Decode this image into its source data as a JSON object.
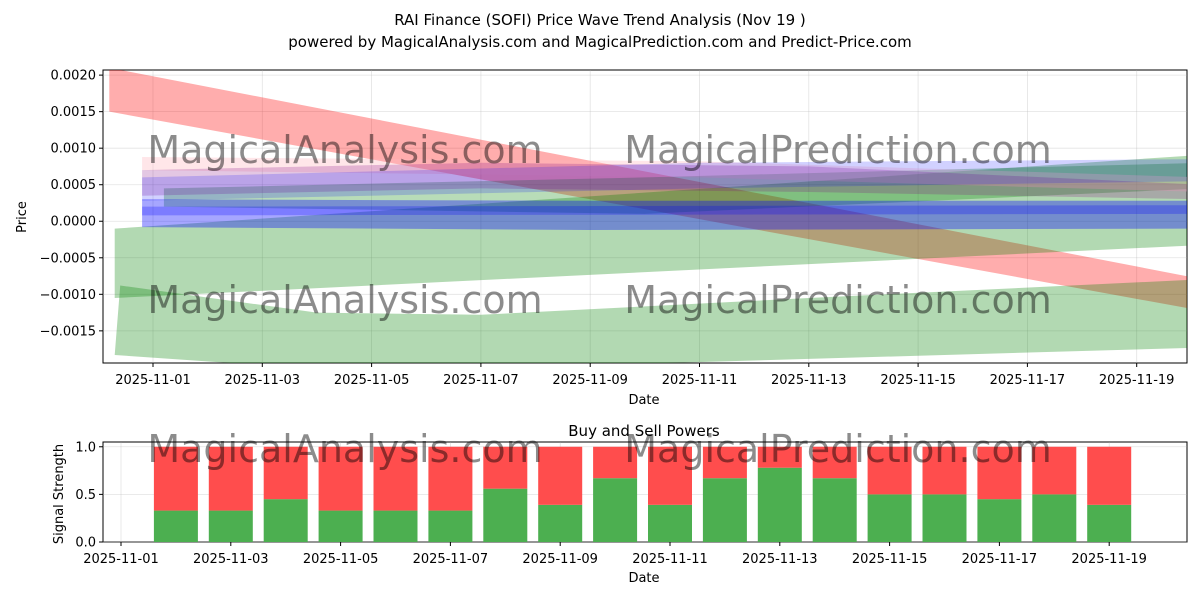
{
  "title_line1": "RAI Finance (SOFI) Price Wave Trend Analysis (Nov 19 )",
  "title_line2": "powered by MagicalAnalysis.com and MagicalPrediction.com and Predict-Price.com",
  "watermarks": [
    "MagicalAnalysis.com",
    "MagicalPrediction.com"
  ],
  "colors": {
    "red": "#ff0000",
    "green": "#008000",
    "blue": "#0000ff",
    "pink": "#ffb6c1",
    "purple": "#800080",
    "buy": "#4caf50",
    "sell": "#ff4d4d"
  },
  "chart_data": [
    {
      "type": "area",
      "title": "",
      "xlabel": "Date",
      "ylabel": "Price",
      "x_ticks": [
        "2025-11-01",
        "2025-11-03",
        "2025-11-05",
        "2025-11-07",
        "2025-11-09",
        "2025-11-11",
        "2025-11-13",
        "2025-11-15",
        "2025-11-17",
        "2025-11-19"
      ],
      "y_ticks": [
        "0.0020",
        "0.0015",
        "0.0010",
        "0.0005",
        "0.0000",
        "−0.0005",
        "−0.0010",
        "−0.0015"
      ],
      "ylim": [
        -0.00194,
        0.00207
      ],
      "grid": true,
      "bands": [
        {
          "name": "red-down",
          "color": "red",
          "opacity": 0.32,
          "upper": [
            [
              -0.8,
              0.0021
            ],
            [
              19.6,
              -0.00085
            ]
          ],
          "lower": [
            [
              -0.8,
              0.0015
            ],
            [
              19.6,
              -0.00128
            ]
          ]
        },
        {
          "name": "green-up-wide",
          "color": "green",
          "opacity": 0.3,
          "upper": [
            [
              -0.7,
              -0.0001
            ],
            [
              19.6,
              0.00093
            ]
          ],
          "lower": [
            [
              -0.7,
              -0.00105
            ],
            [
              19.6,
              -0.00031
            ]
          ]
        },
        {
          "name": "green-lower",
          "color": "green",
          "opacity": 0.3,
          "upper": [
            [
              -0.6,
              -0.00088
            ],
            [
              3.0,
              -0.00125
            ],
            [
              6.0,
              -0.00128
            ],
            [
              12.0,
              -0.00105
            ],
            [
              19.6,
              -0.00078
            ]
          ],
          "lower": [
            [
              -0.7,
              -0.00183
            ],
            [
              2.0,
              -0.00197
            ],
            [
              8.0,
              -0.00197
            ],
            [
              19.6,
              -0.00172
            ]
          ]
        },
        {
          "name": "green-mid",
          "color": "green",
          "opacity": 0.28,
          "upper": [
            [
              0.2,
              0.00045
            ],
            [
              9.0,
              0.0006
            ],
            [
              19.2,
              0.0008
            ]
          ],
          "lower": [
            [
              0.2,
              0.0002
            ],
            [
              9.0,
              0.0001
            ],
            [
              19.2,
              0.00045
            ]
          ]
        },
        {
          "name": "pink-top",
          "color": "pink",
          "opacity": 0.35,
          "upper": [
            [
              -0.2,
              0.00088
            ],
            [
              10.0,
              0.00082
            ],
            [
              19.2,
              0.0006
            ]
          ],
          "lower": [
            [
              -0.2,
              0.0007
            ],
            [
              10.0,
              0.0006
            ],
            [
              19.2,
              0.0004
            ]
          ]
        },
        {
          "name": "purple-top",
          "color": "purple",
          "opacity": 0.22,
          "upper": [
            [
              -0.2,
              0.0007
            ],
            [
              6.0,
              0.0008
            ],
            [
              12.0,
              0.00075
            ],
            [
              19.2,
              0.0005
            ]
          ],
          "lower": [
            [
              -0.2,
              0.00035
            ],
            [
              6.0,
              0.00045
            ],
            [
              12.0,
              0.0004
            ],
            [
              19.2,
              0.0003
            ]
          ]
        },
        {
          "name": "blue-upper",
          "color": "blue",
          "opacity": 0.18,
          "upper": [
            [
              -0.2,
              0.0006
            ],
            [
              10.0,
              0.0008
            ],
            [
              19.2,
              0.00085
            ]
          ],
          "lower": [
            [
              -0.2,
              0.00028
            ],
            [
              10.0,
              0.00045
            ],
            [
              19.2,
              0.00055
            ]
          ]
        },
        {
          "name": "blue-lower",
          "color": "blue",
          "opacity": 0.35,
          "upper": [
            [
              -0.2,
              0.0003
            ],
            [
              8.0,
              0.00028
            ],
            [
              19.2,
              0.00028
            ]
          ],
          "lower": [
            [
              -0.2,
              -8e-05
            ],
            [
              8.0,
              -0.00012
            ],
            [
              19.2,
              -0.0001
            ]
          ]
        },
        {
          "name": "blue-thin",
          "color": "blue",
          "opacity": 0.25,
          "upper": [
            [
              -0.2,
              0.0002
            ],
            [
              19.2,
              0.00022
            ]
          ],
          "lower": [
            [
              -0.2,
              8e-05
            ],
            [
              19.2,
              0.0001
            ]
          ]
        }
      ]
    },
    {
      "type": "bar",
      "title": "Buy and Sell Powers",
      "xlabel": "Date",
      "ylabel": "Signal Strength",
      "x_ticks": [
        "2025-11-01",
        "2025-11-03",
        "2025-11-05",
        "2025-11-07",
        "2025-11-09",
        "2025-11-11",
        "2025-11-13",
        "2025-11-15",
        "2025-11-17",
        "2025-11-19"
      ],
      "y_ticks": [
        "0.0",
        "0.5",
        "1.0"
      ],
      "ylim": [
        0,
        1.05
      ],
      "grid": true,
      "bar_days": [
        1,
        2,
        3,
        4,
        5,
        6,
        7,
        8,
        9,
        10,
        11,
        12,
        13,
        14,
        15,
        16,
        17,
        18
      ],
      "buy": [
        0.33,
        0.33,
        0.45,
        0.33,
        0.33,
        0.33,
        0.56,
        0.39,
        0.67,
        0.39,
        0.67,
        0.78,
        0.67,
        0.5,
        0.5,
        0.45,
        0.5,
        0.39
      ],
      "sell": [
        0.67,
        0.67,
        0.55,
        0.67,
        0.67,
        0.67,
        0.44,
        0.61,
        0.33,
        0.61,
        0.33,
        0.22,
        0.33,
        0.5,
        0.5,
        0.55,
        0.5,
        0.61
      ]
    }
  ]
}
